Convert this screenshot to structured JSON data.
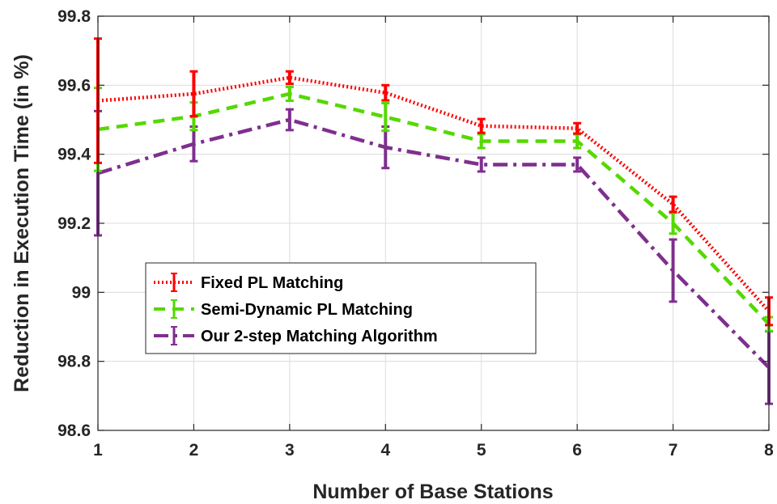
{
  "chart_data": {
    "type": "line",
    "title": "",
    "xlabel": "Number of Base Stations",
    "ylabel": "Reduction in Execution Time (in %)",
    "x": [
      1,
      2,
      3,
      4,
      5,
      6,
      7,
      8
    ],
    "xticks": [
      "1",
      "2",
      "3",
      "4",
      "5",
      "6",
      "7",
      "8"
    ],
    "yticks": [
      "98.6",
      "98.8",
      "99",
      "99.2",
      "99.4",
      "99.6",
      "99.8"
    ],
    "ylim": [
      98.6,
      99.8
    ],
    "xlim": [
      1,
      8
    ],
    "grid": true,
    "legend_position": "center-left",
    "series": [
      {
        "name": "Fixed PL Matching",
        "color": "#ff0000",
        "dash": "dotted",
        "values": [
          99.555,
          99.575,
          99.622,
          99.578,
          99.482,
          99.475,
          99.255,
          98.945
        ],
        "error": [
          0.18,
          0.065,
          0.018,
          0.022,
          0.02,
          0.015,
          0.022,
          0.04
        ]
      },
      {
        "name": "Semi-Dynamic PL Matching",
        "color": "#55d800",
        "dash": "dashed",
        "values": [
          99.472,
          99.51,
          99.575,
          99.508,
          99.438,
          99.438,
          99.2,
          98.908
        ],
        "error": [
          0.12,
          0.04,
          0.02,
          0.04,
          0.02,
          0.02,
          0.03,
          0.02
        ]
      },
      {
        "name": "Our 2-step Matching Algorithm",
        "color": "#7e2f8e",
        "dash": "dashdot",
        "values": [
          99.345,
          99.43,
          99.5,
          99.42,
          99.37,
          99.37,
          99.063,
          98.782
        ],
        "error": [
          0.18,
          0.05,
          0.03,
          0.06,
          0.02,
          0.02,
          0.09,
          0.105
        ]
      }
    ]
  }
}
